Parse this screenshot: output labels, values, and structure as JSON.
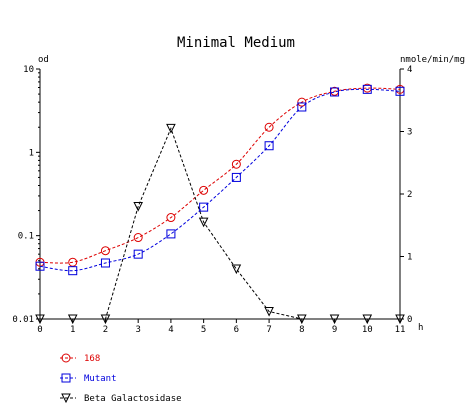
{
  "chart_data": {
    "type": "line",
    "title": "Minimal Medium",
    "left_axis_label": "od",
    "right_axis_label": "nmole/min/mg",
    "x_unit_label": "h",
    "x": [
      0,
      1,
      2,
      3,
      4,
      5,
      6,
      7,
      8,
      9,
      10,
      11
    ],
    "x_tick_labels": [
      "0",
      "1",
      "2",
      "3",
      "4",
      "5",
      "6",
      "7",
      "8",
      "9",
      "10",
      "11"
    ],
    "xlim": [
      0,
      11
    ],
    "left_axis": {
      "scale": "log",
      "ylim": [
        0.01,
        10
      ],
      "tick_values": [
        0.01,
        0.1,
        1,
        10
      ],
      "tick_labels": [
        "0.01",
        "0.1",
        "1",
        "10"
      ]
    },
    "right_axis": {
      "scale": "linear",
      "ylim": [
        0,
        4
      ],
      "tick_values": [
        0,
        1,
        2,
        3,
        4
      ],
      "tick_labels": [
        "0",
        "1",
        "2",
        "3",
        "4"
      ]
    },
    "grid": false,
    "legend_position": "bottom-left",
    "series": [
      {
        "name": "168",
        "axis": "left",
        "color": "#dd0000",
        "marker": "circle",
        "values": [
          0.048,
          0.048,
          0.066,
          0.095,
          0.165,
          0.35,
          0.72,
          2.0,
          4.0,
          5.4,
          5.9,
          5.7
        ]
      },
      {
        "name": "Mutant",
        "axis": "left",
        "color": "#0000dd",
        "marker": "square",
        "values": [
          0.043,
          0.038,
          0.047,
          0.06,
          0.105,
          0.22,
          0.5,
          1.2,
          3.5,
          5.3,
          5.7,
          5.4
        ]
      },
      {
        "name": "Beta Galactosidase",
        "axis": "right",
        "color": "#000000",
        "marker": "triangle-down",
        "values": [
          0.0,
          0.0,
          0.0,
          1.8,
          3.05,
          1.55,
          0.8,
          0.12,
          0.0,
          0.0,
          0.0,
          0.0
        ]
      }
    ]
  }
}
